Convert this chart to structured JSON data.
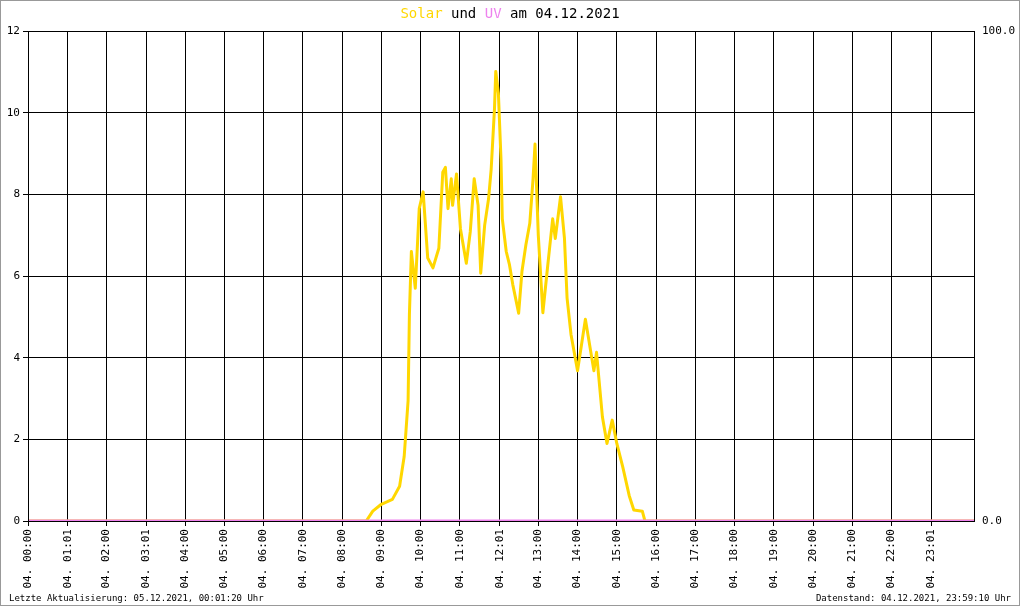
{
  "chart_data": {
    "type": "line",
    "title": "Solar und UV am 04.12.2021",
    "annotations": [
      "Letzte Aktualisierung: 05.12.2021, 00:01:20 Uhr",
      "Datenstand: 04.12.2021, 23:59:10 Uhr"
    ],
    "xlim": [
      "2021-12-04T00:00",
      "2021-12-05T00:06"
    ],
    "xticks": [
      {
        "value": "2021-12-04T00:00",
        "label": "04. 00:00"
      },
      {
        "value": "2021-12-04T01:01",
        "label": "04. 01:01"
      },
      {
        "value": "2021-12-04T02:00",
        "label": "04. 02:00"
      },
      {
        "value": "2021-12-04T03:01",
        "label": "04. 03:01"
      },
      {
        "value": "2021-12-04T04:00",
        "label": "04. 04:00"
      },
      {
        "value": "2021-12-04T05:00",
        "label": "04. 05:00"
      },
      {
        "value": "2021-12-04T06:00",
        "label": "04. 06:00"
      },
      {
        "value": "2021-12-04T07:00",
        "label": "04. 07:00"
      },
      {
        "value": "2021-12-04T08:00",
        "label": "04. 08:00"
      },
      {
        "value": "2021-12-04T09:00",
        "label": "04. 09:00"
      },
      {
        "value": "2021-12-04T10:00",
        "label": "04. 10:00"
      },
      {
        "value": "2021-12-04T11:00",
        "label": "04. 11:00"
      },
      {
        "value": "2021-12-04T12:01",
        "label": "04. 12:01"
      },
      {
        "value": "2021-12-04T13:00",
        "label": "04. 13:00"
      },
      {
        "value": "2021-12-04T14:00",
        "label": "04. 14:00"
      },
      {
        "value": "2021-12-04T15:00",
        "label": "04. 15:00"
      },
      {
        "value": "2021-12-04T16:00",
        "label": "04. 16:00"
      },
      {
        "value": "2021-12-04T17:00",
        "label": "04. 17:00"
      },
      {
        "value": "2021-12-04T18:00",
        "label": "04. 18:00"
      },
      {
        "value": "2021-12-04T19:00",
        "label": "04. 19:00"
      },
      {
        "value": "2021-12-04T20:00",
        "label": "04. 20:00"
      },
      {
        "value": "2021-12-04T21:00",
        "label": "04. 21:00"
      },
      {
        "value": "2021-12-04T22:00",
        "label": "04. 22:00"
      },
      {
        "value": "2021-12-04T23:01",
        "label": "04. 23:01"
      }
    ],
    "ylim": [
      0,
      12
    ],
    "yticks": [
      0,
      2,
      4,
      6,
      8,
      10,
      12
    ],
    "y2lim": [
      0,
      100
    ],
    "y2ticks": [
      {
        "value": 0,
        "label": "0.0"
      },
      {
        "value": 100,
        "label": "100.0"
      }
    ],
    "grid": true,
    "legend": false,
    "marker": "none",
    "line_style": "solid",
    "series": [
      {
        "color": "#ffd700",
        "x": [
          "2021-12-04T00:00",
          "2021-12-04T08:37",
          "2021-12-04T08:47",
          "2021-12-04T09:00",
          "2021-12-04T09:17",
          "2021-12-04T09:28",
          "2021-12-04T09:35",
          "2021-12-04T09:41",
          "2021-12-04T09:43",
          "2021-12-04T09:46",
          "2021-12-04T09:52",
          "2021-12-04T09:58",
          "2021-12-04T10:04",
          "2021-12-04T10:11",
          "2021-12-04T10:19",
          "2021-12-04T10:28",
          "2021-12-04T10:34",
          "2021-12-04T10:38",
          "2021-12-04T10:42",
          "2021-12-04T10:47",
          "2021-12-04T10:49",
          "2021-12-04T10:55",
          "2021-12-04T11:01",
          "2021-12-04T11:10",
          "2021-12-04T11:16",
          "2021-12-04T11:22",
          "2021-12-04T11:28",
          "2021-12-04T11:32",
          "2021-12-04T11:38",
          "2021-12-04T11:44",
          "2021-12-04T11:48",
          "2021-12-04T11:53",
          "2021-12-04T11:55",
          "2021-12-04T11:59",
          "2021-12-04T12:03",
          "2021-12-04T12:05",
          "2021-12-04T12:11",
          "2021-12-04T12:16",
          "2021-12-04T12:21",
          "2021-12-04T12:30",
          "2021-12-04T12:35",
          "2021-12-04T12:41",
          "2021-12-04T12:47",
          "2021-12-04T12:52",
          "2021-12-04T12:55",
          "2021-12-04T13:00",
          "2021-12-04T13:07",
          "2021-12-04T13:14",
          "2021-12-04T13:22",
          "2021-12-04T13:26",
          "2021-12-04T13:34",
          "2021-12-04T13:40",
          "2021-12-04T13:44",
          "2021-12-04T13:50",
          "2021-12-04T14:00",
          "2021-12-04T14:12",
          "2021-12-04T14:25",
          "2021-12-04T14:29",
          "2021-12-04T14:38",
          "2021-12-04T14:45",
          "2021-12-04T14:53",
          "2021-12-04T15:00",
          "2021-12-04T15:09",
          "2021-12-04T15:19",
          "2021-12-04T15:26",
          "2021-12-04T15:39",
          "2021-12-04T15:43",
          "2021-12-05T00:06"
        ],
        "values": [
          0,
          0,
          0.24,
          0.41,
          0.53,
          0.85,
          1.58,
          2.95,
          5.06,
          6.6,
          5.7,
          7.65,
          8.06,
          6.44,
          6.2,
          6.68,
          8.54,
          8.66,
          7.65,
          8.38,
          7.73,
          8.5,
          7.16,
          6.31,
          7.08,
          8.38,
          7.73,
          6.07,
          7.24,
          7.89,
          8.62,
          10.08,
          11.01,
          10.48,
          8.86,
          7.4,
          6.6,
          6.27,
          5.79,
          5.09,
          6.11,
          6.76,
          7.29,
          8.38,
          9.23,
          7.0,
          5.1,
          6.19,
          7.4,
          6.92,
          7.94,
          6.92,
          5.46,
          4.57,
          3.68,
          4.94,
          3.68,
          4.13,
          2.55,
          1.9,
          2.47,
          1.9,
          1.33,
          0.62,
          0.27,
          0.24,
          0,
          0
        ]
      },
      {
        "color": "#ee82ee",
        "axis": "y2",
        "x": [
          "2021-12-04T00:00",
          "2021-12-05T00:06"
        ],
        "values": [
          0,
          0
        ]
      }
    ]
  }
}
